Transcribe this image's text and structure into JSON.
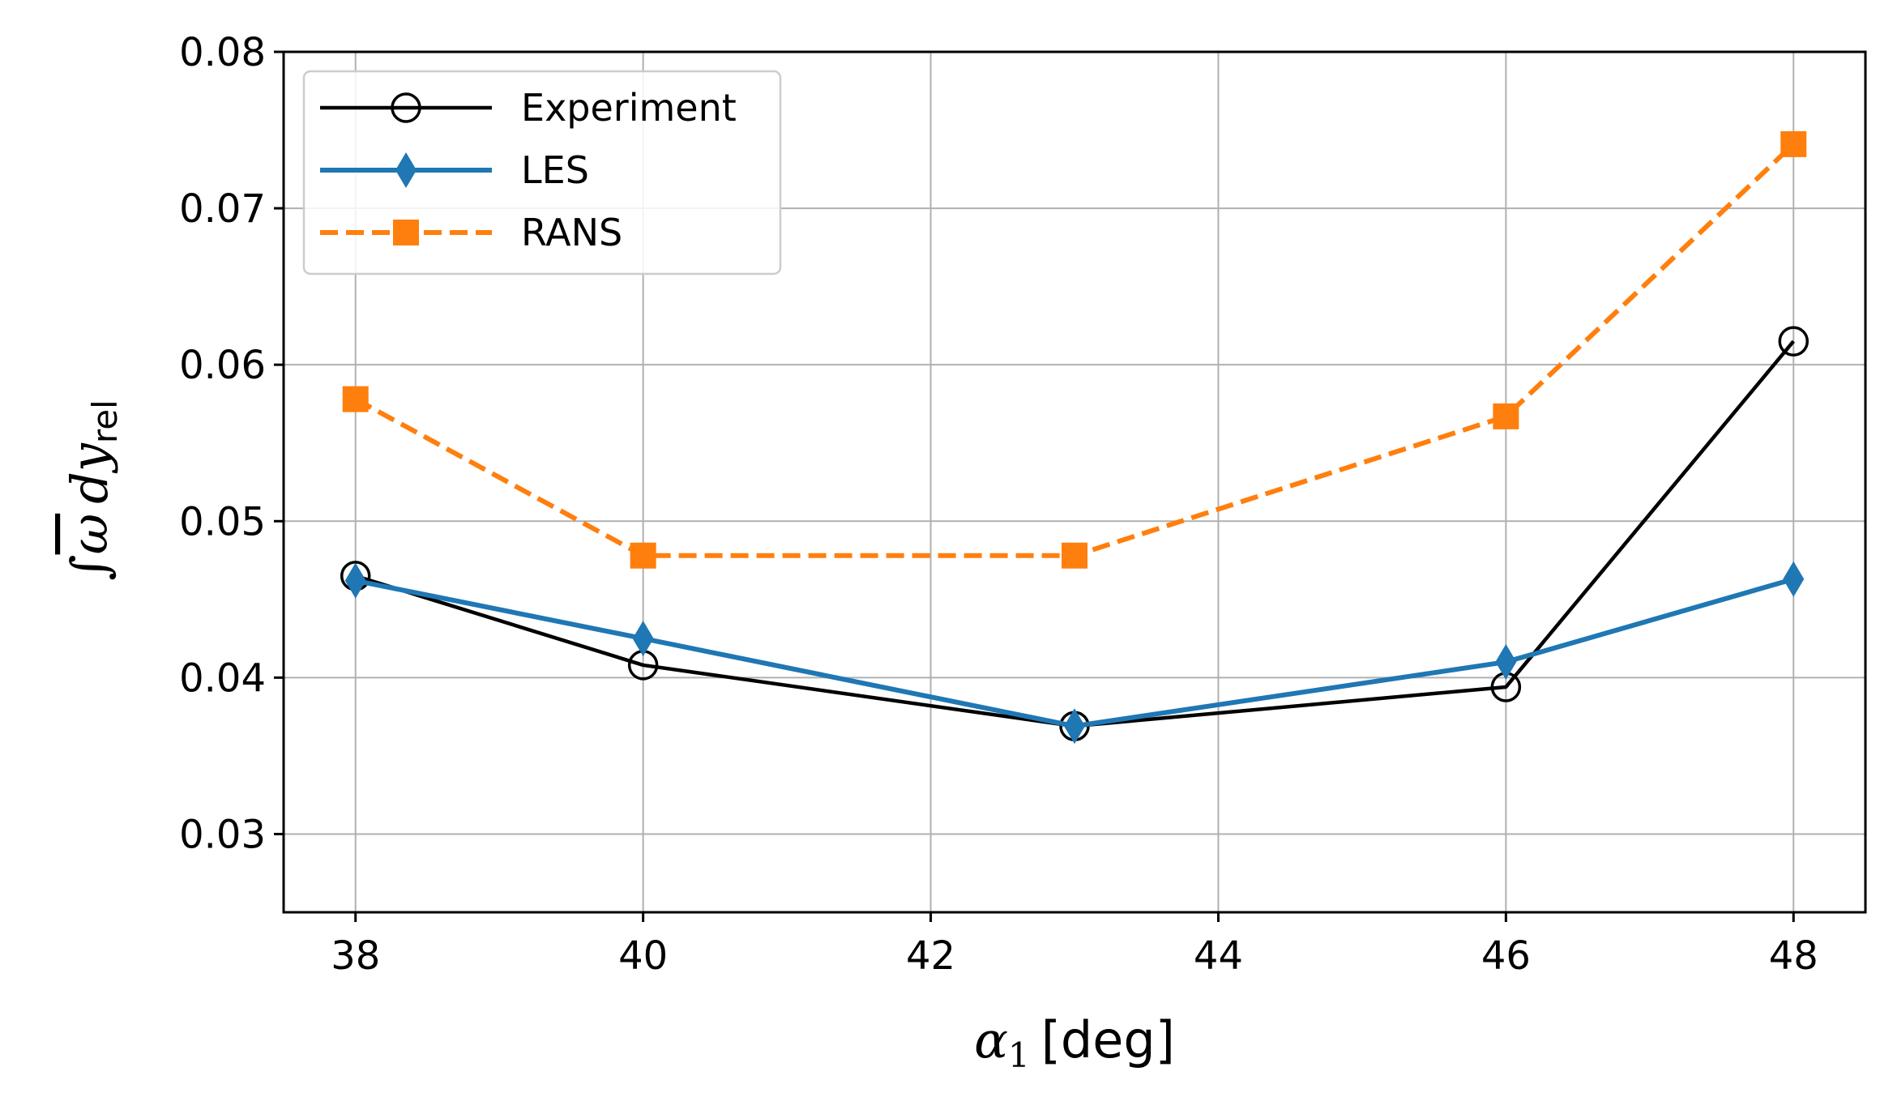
{
  "chart_data": {
    "type": "line",
    "title": "",
    "xlabel": "α₁ [deg]",
    "xlabel_parts": {
      "symbol": "α",
      "subscript": "1",
      "unit": "[deg]"
    },
    "ylabel": "∫ω̄ dy_rel",
    "ylabel_parts": {
      "integral": "∫",
      "omega": "ω",
      "d": "d",
      "y": "y",
      "subscript": "rel"
    },
    "xlim": [
      37.5,
      48.5
    ],
    "ylim": [
      0.025,
      0.08
    ],
    "x_ticks": [
      38,
      40,
      42,
      44,
      46,
      48
    ],
    "x_tick_labels": [
      "38",
      "40",
      "42",
      "44",
      "46",
      "48"
    ],
    "y_ticks": [
      0.03,
      0.04,
      0.05,
      0.06,
      0.07,
      0.08
    ],
    "y_tick_labels": [
      "0.03",
      "0.04",
      "0.05",
      "0.06",
      "0.07",
      "0.08"
    ],
    "grid": true,
    "legend_position": "top-left",
    "x": [
      38,
      40,
      43,
      46,
      48
    ],
    "series": [
      {
        "name": "Experiment",
        "color": "#000000",
        "marker": "circle-open",
        "linestyle": "solid",
        "values": [
          0.0465,
          0.0408,
          0.0369,
          0.0394,
          0.0615
        ]
      },
      {
        "name": "LES",
        "color": "#1f77b4",
        "marker": "diamond",
        "linestyle": "solid",
        "values": [
          0.0462,
          0.0425,
          0.0369,
          0.041,
          0.0463
        ]
      },
      {
        "name": "RANS",
        "color": "#ff7f0e",
        "marker": "square",
        "linestyle": "dashed",
        "values": [
          0.0578,
          0.0478,
          0.0478,
          0.0567,
          0.0741
        ]
      }
    ]
  }
}
